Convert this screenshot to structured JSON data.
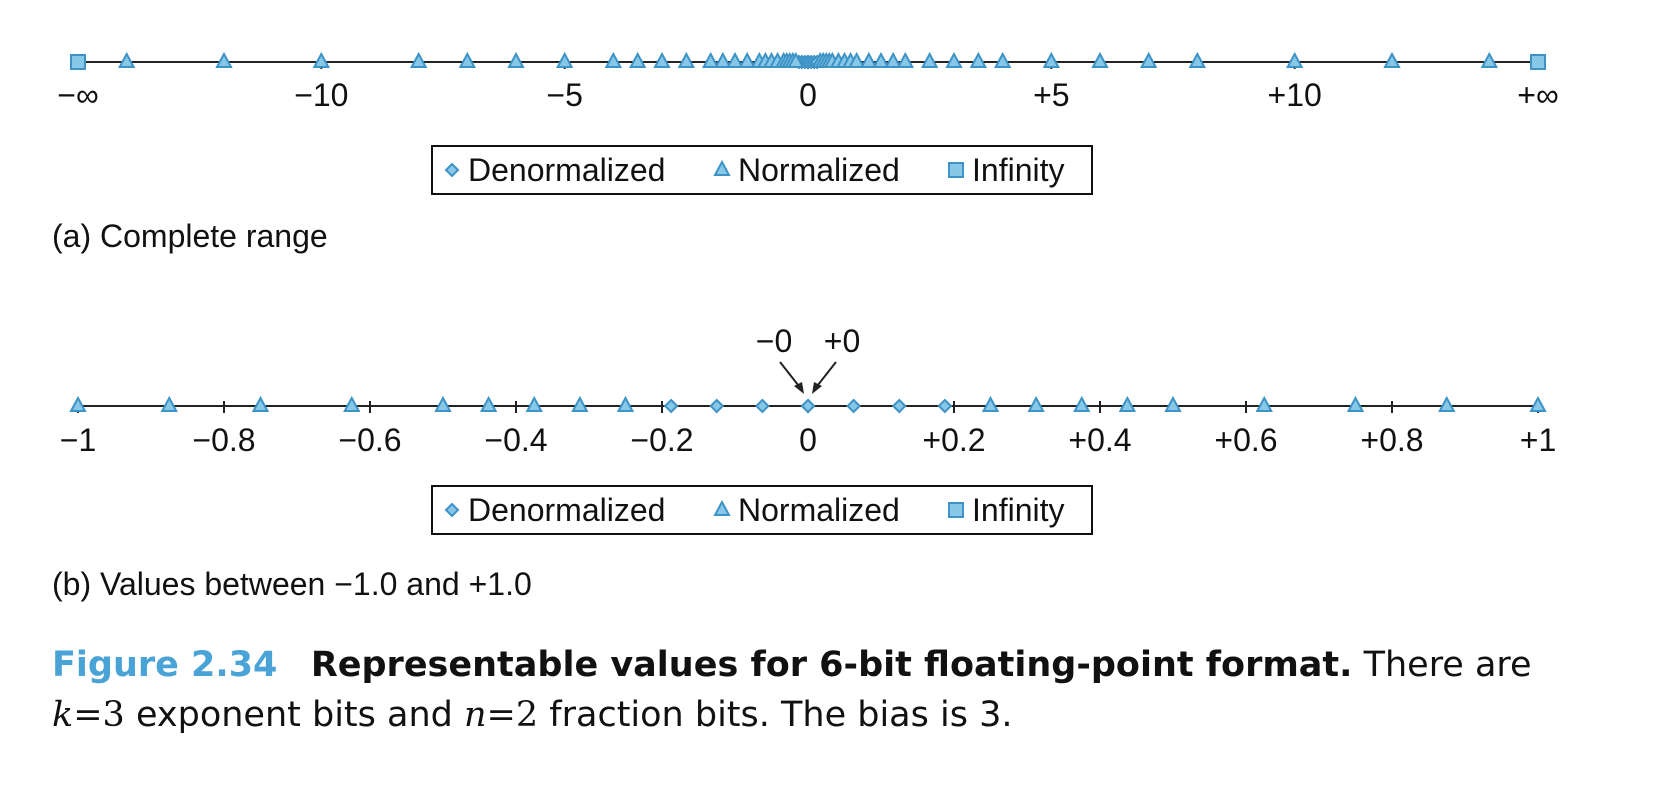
{
  "colors": {
    "marker_fill": "#87c7e8",
    "marker_stroke": "#3d93c6",
    "axis": "#222222",
    "caption_accent": "#4aa3d6"
  },
  "legend": {
    "denormalized": "Denormalized",
    "normalized": "Normalized",
    "infinity": "Infinity"
  },
  "chart_data": [
    {
      "type": "scatter",
      "caption": "(a) Complete range",
      "xlim": [
        -15,
        15
      ],
      "ticks": [
        {
          "value": -15,
          "label": "−∞"
        },
        {
          "value": -10,
          "label": "−10"
        },
        {
          "value": -5,
          "label": "−5"
        },
        {
          "value": 0,
          "label": "0"
        },
        {
          "value": 5,
          "label": "+5"
        },
        {
          "value": 10,
          "label": "+10"
        },
        {
          "value": 15,
          "label": "+∞"
        }
      ],
      "series": [
        {
          "name": "Denormalized",
          "marker": "diamond",
          "values": [
            -0.1875,
            -0.125,
            -0.0625,
            -0.0,
            0.0,
            0.0625,
            0.125,
            0.1875
          ]
        },
        {
          "name": "Normalized",
          "marker": "triangle",
          "values": [
            -14,
            -12,
            -10,
            -8,
            -7,
            -6,
            -5,
            -4,
            -3.5,
            -3,
            -2.5,
            -2,
            -1.75,
            -1.5,
            -1.25,
            -1,
            -0.875,
            -0.75,
            -0.625,
            -0.5,
            -0.4375,
            -0.375,
            -0.3125,
            -0.25,
            0.25,
            0.3125,
            0.375,
            0.4375,
            0.5,
            0.625,
            0.75,
            0.875,
            1,
            1.25,
            1.5,
            1.75,
            2,
            2.5,
            3,
            3.5,
            4,
            5,
            6,
            7,
            8,
            10,
            12,
            14
          ]
        },
        {
          "name": "Infinity",
          "marker": "square",
          "values": [
            -15,
            15
          ]
        }
      ]
    },
    {
      "type": "scatter",
      "caption": "(b) Values between −1.0 and +1.0",
      "xlim": [
        -1,
        1
      ],
      "ticks": [
        {
          "value": -1,
          "label": "−1"
        },
        {
          "value": -0.8,
          "label": "−0.8"
        },
        {
          "value": -0.6,
          "label": "−0.6"
        },
        {
          "value": -0.4,
          "label": "−0.4"
        },
        {
          "value": -0.2,
          "label": "−0.2"
        },
        {
          "value": 0,
          "label": "0"
        },
        {
          "value": 0.2,
          "label": "+0.2"
        },
        {
          "value": 0.4,
          "label": "+0.4"
        },
        {
          "value": 0.6,
          "label": "+0.6"
        },
        {
          "value": 0.8,
          "label": "+0.8"
        },
        {
          "value": 1,
          "label": "+1"
        }
      ],
      "annotations": {
        "neg_zero": "−0",
        "pos_zero": "+0"
      },
      "series": [
        {
          "name": "Denormalized",
          "marker": "diamond",
          "values": [
            -0.1875,
            -0.125,
            -0.0625,
            -0.0,
            0.0,
            0.0625,
            0.125,
            0.1875
          ]
        },
        {
          "name": "Normalized",
          "marker": "triangle",
          "values": [
            -1,
            -0.875,
            -0.75,
            -0.625,
            -0.5,
            -0.4375,
            -0.375,
            -0.3125,
            -0.25,
            0.25,
            0.3125,
            0.375,
            0.4375,
            0.5,
            0.625,
            0.75,
            0.875,
            1
          ]
        },
        {
          "name": "Infinity",
          "marker": "square",
          "values": []
        }
      ]
    }
  ],
  "figure": {
    "number": "Figure 2.34",
    "title": "Representable values for 6-bit floating-point format.",
    "text_1": "There are",
    "k_var": "k",
    "eq": "=",
    "k_val": "3",
    "text_2": "exponent bits and",
    "n_var": "n",
    "n_val": "2",
    "text_3": "fraction bits. The bias is 3."
  }
}
